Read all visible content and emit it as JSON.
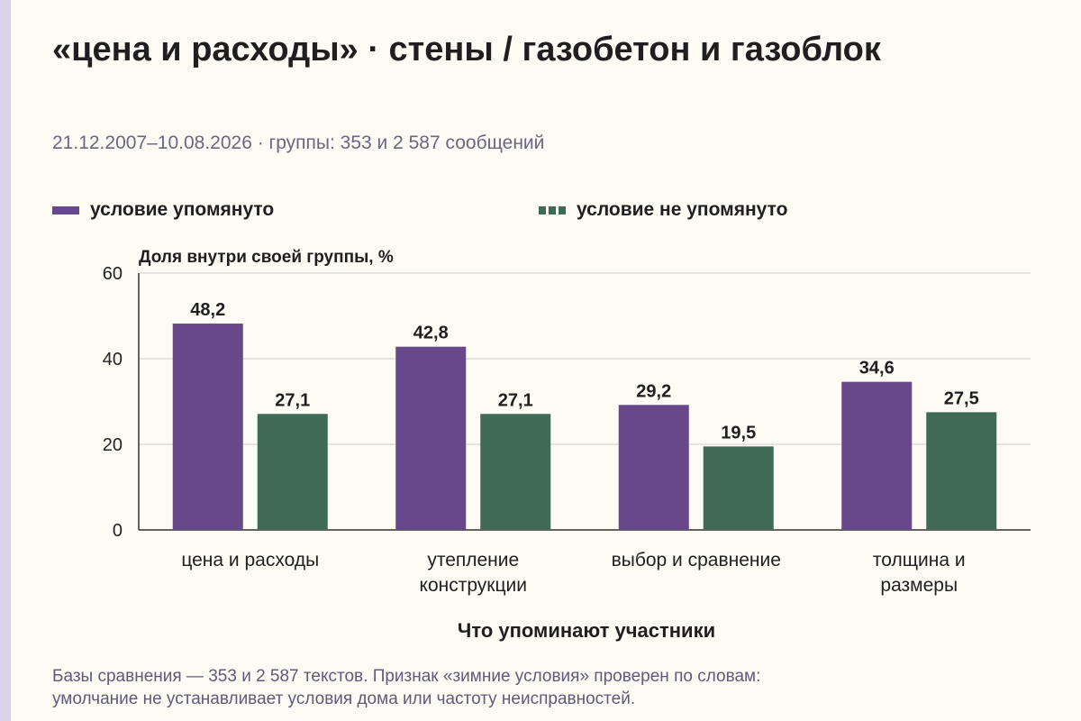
{
  "title": "«цена и расходы» · стены / газобетон и газоблок",
  "subtitle": "21.12.2007–10.08.2026 · группы: 353 и 2 587 сообщений",
  "footnote_lines": [
    "Базы сравнения — 353 и 2 587 текстов. Признак «зимние условия» проверен по словам:",
    "умолчание не устанавливает условия дома или частоту неисправностей."
  ],
  "colors": {
    "mentioned": "#67488a",
    "not_mentioned": "#3f6b55",
    "grid": "#cfccc8",
    "accent_strip": "#dcd3ea"
  },
  "chart_data": {
    "type": "bar",
    "ylabel": "Доля внутри своей группы, %",
    "xlabel": "Что упоминают участники",
    "ylim": [
      0,
      60
    ],
    "yticks": [
      0,
      20,
      40,
      60
    ],
    "grid": true,
    "legend_position": "top",
    "categories": [
      [
        "цена и расходы"
      ],
      [
        "утепление",
        "конструкции"
      ],
      [
        "выбор и сравнение"
      ],
      [
        "толщина и",
        "размеры"
      ]
    ],
    "series": [
      {
        "name": "условие упомянуто",
        "values": [
          48.2,
          42.8,
          29.2,
          34.6
        ],
        "labels": [
          "48,2",
          "42,8",
          "29,2",
          "34,6"
        ],
        "style": "solid"
      },
      {
        "name": "условие не упомянуто",
        "values": [
          27.1,
          27.1,
          19.5,
          27.5
        ],
        "labels": [
          "27,1",
          "27,1",
          "19,5",
          "27,5"
        ],
        "style": "dashed"
      }
    ]
  }
}
